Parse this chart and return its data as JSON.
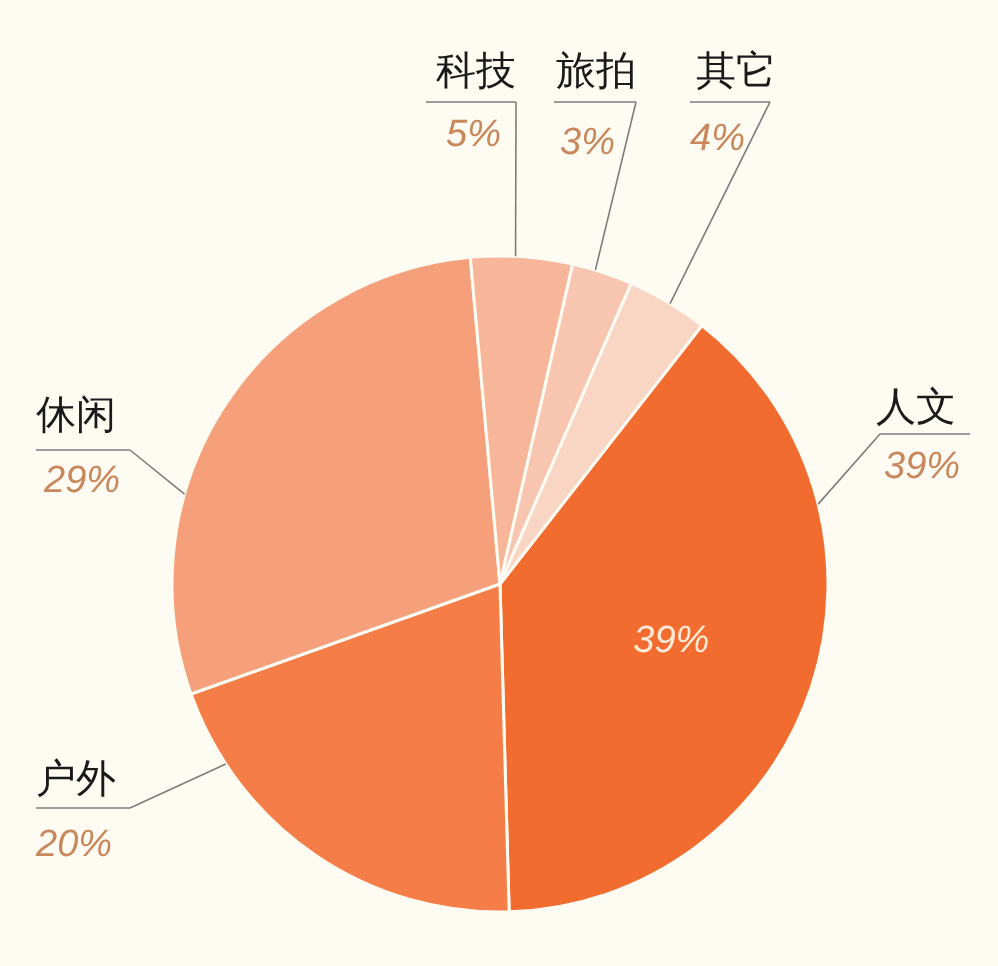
{
  "chart_data": {
    "type": "pie",
    "categories": [
      "人文",
      "户外",
      "休闲",
      "科技",
      "旅拍",
      "其它"
    ],
    "values": [
      39,
      20,
      29,
      5,
      3,
      4
    ],
    "colors": [
      "#f26b2f",
      "#f47d48",
      "#f5a07a",
      "#f7b69a",
      "#f8c6b0",
      "#f9d5c4"
    ],
    "value_labels": [
      "39%",
      "20%",
      "29%",
      "5%",
      "3%",
      "4%"
    ],
    "annotations": [
      {
        "text": "39%",
        "x": "人文"
      }
    ]
  }
}
